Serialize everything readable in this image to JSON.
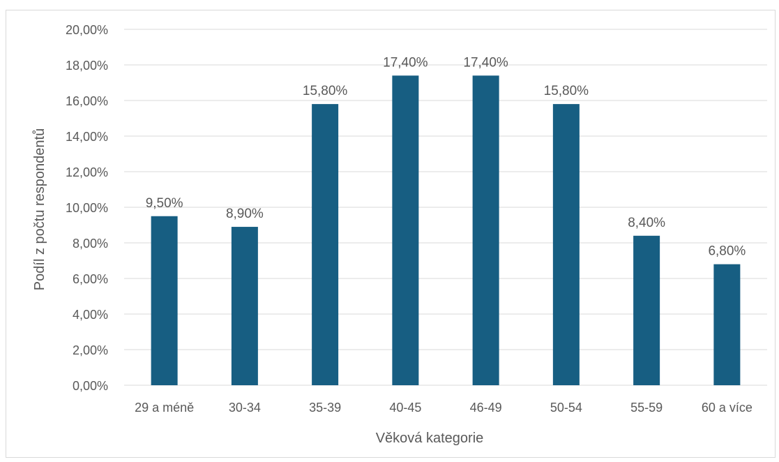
{
  "colors": {
    "bar": "#175E82",
    "grid": "#d9d9d9",
    "text": "#595959",
    "border": "#d9d9d9"
  },
  "chart_data": {
    "type": "bar",
    "title": "",
    "xlabel": "Věková kategorie",
    "ylabel": "Podíl z počtu respondentů",
    "categories": [
      "29 a méně",
      "30-34",
      "35-39",
      "40-45",
      "46-49",
      "50-54",
      "55-59",
      "60 a více"
    ],
    "values": [
      9.5,
      8.9,
      15.8,
      17.4,
      17.4,
      15.8,
      8.4,
      6.8
    ],
    "data_labels": [
      "9,50%",
      "8,90%",
      "15,80%",
      "17,40%",
      "17,40%",
      "15,80%",
      "8,40%",
      "6,80%"
    ],
    "ylim": [
      0,
      20
    ],
    "yticks": [
      0,
      2,
      4,
      6,
      8,
      10,
      12,
      14,
      16,
      18,
      20
    ],
    "ytick_labels": [
      "0,00%",
      "2,00%",
      "4,00%",
      "6,00%",
      "8,00%",
      "10,00%",
      "12,00%",
      "14,00%",
      "16,00%",
      "18,00%",
      "20,00%"
    ],
    "grid": true,
    "legend": "none"
  }
}
